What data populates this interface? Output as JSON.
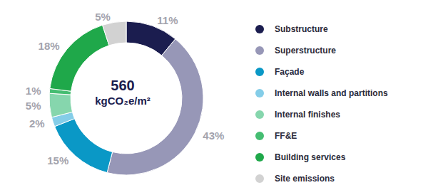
{
  "chart_data": {
    "type": "pie",
    "categories": [
      "Substructure",
      "Superstructure",
      "Façade",
      "Internal walls and partitions",
      "Internal finishes",
      "FF&E",
      "Building services",
      "Site emissions"
    ],
    "values": [
      11,
      43,
      15,
      2,
      5,
      1,
      18,
      5
    ],
    "value_labels": [
      "11%",
      "43%",
      "15%",
      "2%",
      "5%",
      "1%",
      "18%",
      "5%"
    ],
    "colors": [
      "#1b1d4f",
      "#9797b7",
      "#0a98c6",
      "#84cde8",
      "#86d6ad",
      "#45bd72",
      "#1fa84a",
      "#d2d2d2"
    ],
    "data_labels": true,
    "legend": "right",
    "total": 560,
    "total_unit": "kgCO₂e/m²"
  }
}
